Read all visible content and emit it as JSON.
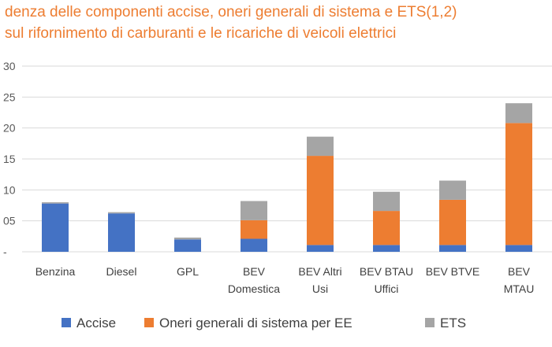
{
  "chart_data": {
    "type": "bar",
    "stacked": true,
    "title_lines": [
      "denza delle componenti accise, oneri generali di sistema e ETS(1,2)",
      "sul rifornimento di carburanti e le ricariche di veicoli elettrici"
    ],
    "categories": [
      [
        "Benzina"
      ],
      [
        "Diesel"
      ],
      [
        "GPL"
      ],
      [
        "BEV",
        "Domestica"
      ],
      [
        "BEV Altri",
        "Usi"
      ],
      [
        "BEV BTAU",
        "Uffici"
      ],
      [
        "BEV BTVE"
      ],
      [
        "BEV",
        "MTAU"
      ]
    ],
    "series": [
      {
        "name": "Accise",
        "color": "#4472C4",
        "values": [
          7.8,
          6.2,
          2.0,
          2.1,
          1.1,
          1.1,
          1.1,
          1.1
        ]
      },
      {
        "name": "Oneri generali di sistema per EE",
        "color": "#ED7D31",
        "values": [
          0,
          0,
          0,
          3.0,
          14.4,
          5.5,
          7.3,
          19.7
        ]
      },
      {
        "name": "ETS",
        "color": "#A5A5A5",
        "values": [
          0.2,
          0.2,
          0.3,
          3.1,
          3.1,
          3.1,
          3.1,
          3.2
        ]
      }
    ],
    "y_tick_labels": [
      "30",
      "25",
      "20",
      "15",
      "10",
      "05",
      "-"
    ],
    "ylim": [
      0,
      30
    ],
    "grid": true,
    "legend_position": "bottom"
  }
}
